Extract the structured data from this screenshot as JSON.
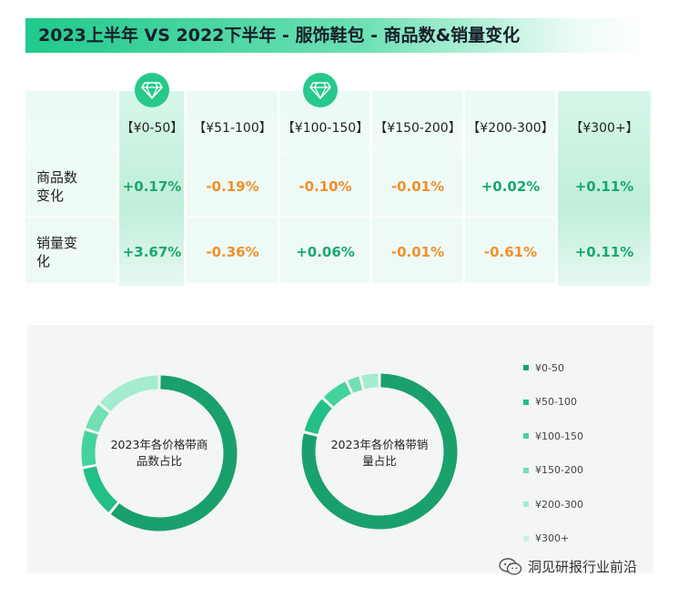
{
  "title": "2023上半年 VS 2022下半年 - 服饰鞋包 - 商品数&销量变化",
  "table": {
    "columns": [
      "【¥0-50】",
      "【¥51-100】",
      "【¥100-150】",
      "【¥150-200】",
      "【¥200-300】",
      "【¥300+】"
    ],
    "rows": [
      {
        "label": "商品数变化",
        "values": [
          "+0.17%",
          "-0.19%",
          "-0.10%",
          "-0.01%",
          "+0.02%",
          "+0.11%"
        ]
      },
      {
        "label": "销量变化",
        "values": [
          "+3.67%",
          "-0.36%",
          "+0.06%",
          "-0.01%",
          "-0.61%",
          "+0.11%"
        ]
      }
    ],
    "diamond_icon": "diamond-icon"
  },
  "colors": {
    "positive": "#1aa86e",
    "negative": "#f2902b",
    "slices": [
      "#1aa06c",
      "#22bf86",
      "#45d39d",
      "#72dfb5",
      "#a3eccf",
      "#c6f3e0"
    ]
  },
  "chart_data": [
    {
      "type": "pie",
      "title": "2023年各价格带商品数占比",
      "categories": [
        "¥0-50",
        "¥50-100",
        "¥100-150",
        "¥150-200",
        "¥200-300",
        "¥300+"
      ],
      "values": [
        61,
        11,
        8,
        6,
        14,
        0
      ]
    },
    {
      "type": "pie",
      "title": "2023年各价格带销量占比",
      "categories": [
        "¥0-50",
        "¥50-100",
        "¥100-150",
        "¥150-200",
        "¥200-300",
        "¥300+"
      ],
      "values": [
        79,
        8,
        6,
        3,
        4,
        0
      ]
    }
  ],
  "legend": {
    "placement": "right",
    "items": [
      "¥0-50",
      "¥50-100",
      "¥100-150",
      "¥150-200",
      "¥200-300",
      "¥300+"
    ]
  },
  "watermark": {
    "icon": "wechat-icon",
    "text": "洞见研报行业前沿"
  }
}
